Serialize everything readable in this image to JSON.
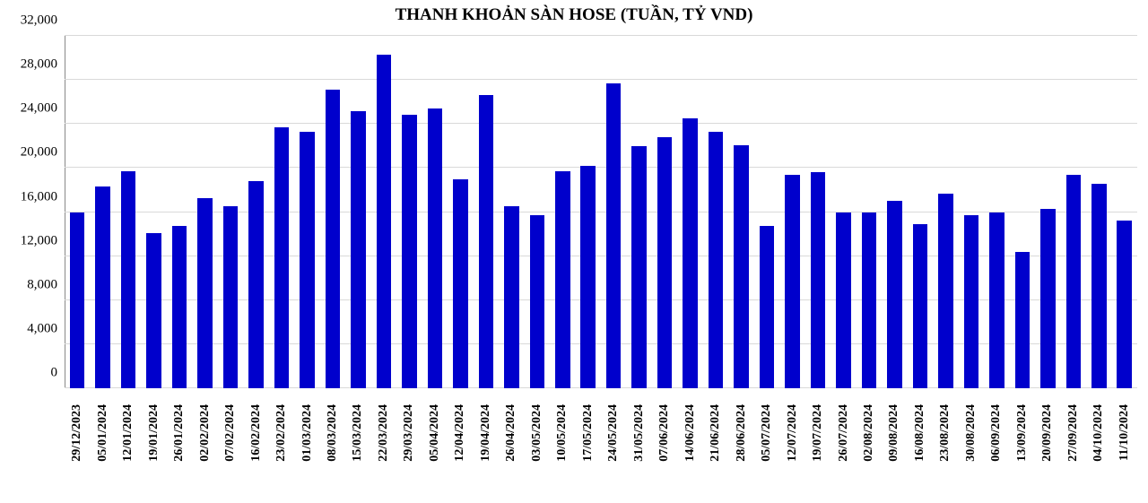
{
  "chart": {
    "type": "bar",
    "title": "THANH KHOẢN SÀN HOSE (TUẦN, TỶ VND)",
    "title_fontsize": 19,
    "title_fontweight": "bold",
    "font_family": "Times New Roman",
    "background_color": "#ffffff",
    "grid_color": "#d9d9d9",
    "axis_color": "#888888",
    "bar_color": "#0000cc",
    "bar_width_ratio": 0.58,
    "label_fontsize": 15,
    "xlabel_fontsize": 14,
    "ylim": [
      0,
      32000
    ],
    "ytick_step": 4000,
    "yticks": [
      0,
      4000,
      8000,
      12000,
      16000,
      20000,
      24000,
      28000,
      32000
    ],
    "ytick_labels": [
      "0",
      "4,000",
      "8,000",
      "12,000",
      "16,000",
      "20,000",
      "24,000",
      "28,000",
      "32,000"
    ],
    "categories": [
      "29/12/2023",
      "05/01/2024",
      "12/01/2024",
      "19/01/2024",
      "26/01/2024",
      "02/02/2024",
      "07/02/2024",
      "16/02/2024",
      "23/02/2024",
      "01/03/2024",
      "08/03/2024",
      "15/03/2024",
      "22/03/2024",
      "29/03/2024",
      "05/04/2024",
      "12/04/2024",
      "19/04/2024",
      "26/04/2024",
      "03/05/2024",
      "10/05/2024",
      "17/05/2024",
      "24/05/2024",
      "31/05/2024",
      "07/06/2024",
      "14/06/2024",
      "21/06/2024",
      "28/06/2024",
      "05/07/2024",
      "12/07/2024",
      "19/07/2024",
      "26/07/2024",
      "02/08/2024",
      "09/08/2024",
      "16/08/2024",
      "23/08/2024",
      "30/08/2024",
      "06/09/2024",
      "13/09/2024",
      "20/09/2024",
      "27/09/2024",
      "04/10/2024",
      "11/10/2024"
    ],
    "values": [
      16000,
      18300,
      19700,
      14100,
      14700,
      17300,
      16500,
      18800,
      23700,
      23300,
      27100,
      25200,
      30300,
      24800,
      25400,
      19000,
      26600,
      16500,
      15700,
      19700,
      20200,
      27700,
      22000,
      22800,
      24500,
      23300,
      22100,
      14700,
      19400,
      19600,
      16000,
      16000,
      17000,
      14900,
      17700,
      15700,
      16000,
      12400,
      16300,
      19400,
      18600,
      15200
    ]
  }
}
